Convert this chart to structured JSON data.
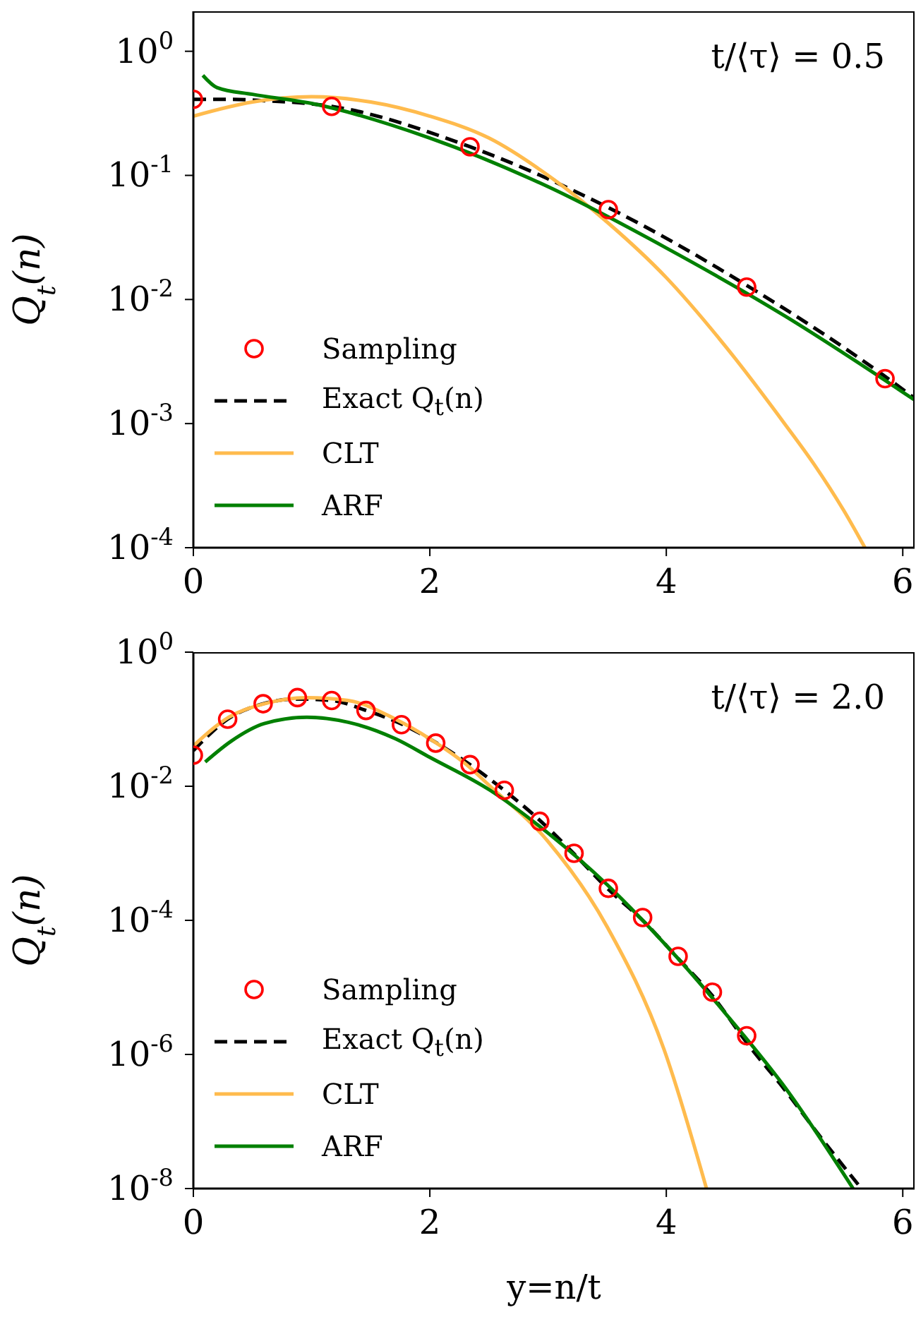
{
  "chart_data": [
    {
      "type": "line",
      "ylabel": "Q$_{t}$(n)",
      "annotations": [
        "t/⟨τ⟩ = 0.5"
      ],
      "xlim": [
        0,
        6.1
      ],
      "xticks": [
        0,
        2,
        4,
        6
      ],
      "ylim": [
        0.0001,
        2.1
      ],
      "yticks": [
        {
          "value": 1,
          "label": "10$^{0}$"
        },
        {
          "value": 0.1,
          "label": "10$^{-1}$"
        },
        {
          "value": 0.01,
          "label": "10$^{-2}$"
        },
        {
          "value": 0.001,
          "label": "10$^{-3}$"
        },
        {
          "value": 0.0001,
          "label": "10$^{-4}$"
        }
      ],
      "log": "y",
      "grid": false,
      "legend": "bottom left",
      "series": [
        {
          "name": "Sampling",
          "type": "scatter",
          "marker": "circle",
          "color": "#ff0000",
          "x": [
            0,
            1.17,
            2.34,
            3.51,
            4.68,
            5.85
          ],
          "values": [
            0.41,
            0.36,
            0.17,
            0.053,
            0.0126,
            0.0023
          ]
        },
        {
          "name": "Exact Q$_{t}$(n)",
          "line_style": "dashed",
          "color": "#000000",
          "x": [
            0,
            0.3,
            0.6,
            1.17,
            2.34,
            3.51,
            4.68,
            5.85,
            6.1
          ],
          "values": [
            0.41,
            0.41,
            0.4,
            0.36,
            0.17,
            0.055,
            0.013,
            0.0024,
            0.0016
          ]
        },
        {
          "name": "CLT",
          "line_style": "solid",
          "color": "#ffbb4d",
          "x": [
            0,
            0.5,
            1,
            1.5,
            2,
            2.5,
            3,
            3.5,
            4,
            4.5,
            5,
            5.25,
            5.5,
            5.68
          ],
          "values": [
            0.3,
            0.39,
            0.43,
            0.39,
            0.3,
            0.2,
            0.1,
            0.042,
            0.015,
            0.0042,
            0.001,
            0.00047,
            0.0002,
            0.0001
          ]
        },
        {
          "name": "ARF",
          "line_style": "solid",
          "color": "#008000",
          "x": [
            0.08,
            0.2,
            0.5,
            1,
            2,
            3,
            4,
            5,
            6.1
          ],
          "values": [
            0.64,
            0.51,
            0.45,
            0.38,
            0.2,
            0.081,
            0.026,
            0.0074,
            0.00155
          ]
        }
      ]
    },
    {
      "type": "line",
      "xlabel": "y=n/t",
      "ylabel": "Q$_{t}$(n)",
      "annotations": [
        "t/⟨τ⟩ = 2.0"
      ],
      "xlim": [
        0,
        6.1
      ],
      "xticks": [
        0,
        2,
        4,
        6
      ],
      "ylim": [
        1e-08,
        1
      ],
      "yticks": [
        {
          "value": 1,
          "label": "10$^{0}$"
        },
        {
          "value": 0.01,
          "label": "10$^{-2}$"
        },
        {
          "value": 0.0001,
          "label": "10$^{-4}$"
        },
        {
          "value": 1e-06,
          "label": "10$^{-6}$"
        },
        {
          "value": 1e-08,
          "label": "10$^{-8}$"
        }
      ],
      "log": "y",
      "grid": false,
      "legend": "bottom left",
      "series": [
        {
          "name": "Sampling",
          "type": "scatter",
          "marker": "circle",
          "color": "#ff0000",
          "x": [
            0,
            0.29,
            0.59,
            0.88,
            1.17,
            1.46,
            1.76,
            2.05,
            2.34,
            2.63,
            2.93,
            3.22,
            3.51,
            3.8,
            4.1,
            4.39,
            4.68
          ],
          "values": [
            0.029,
            0.1,
            0.17,
            0.21,
            0.19,
            0.135,
            0.083,
            0.044,
            0.021,
            0.0087,
            0.003,
            0.001,
            0.0003,
            0.00011,
            2.9e-05,
            8.5e-06,
            1.9e-06
          ]
        },
        {
          "name": "Exact Q$_{t}$(n)",
          "line_style": "dashed",
          "color": "#000000",
          "x": [
            0,
            0.29,
            0.59,
            0.88,
            1.17,
            1.46,
            1.76,
            2.05,
            2.34,
            2.63,
            2.93,
            3.22,
            3.51,
            3.8,
            4.1,
            4.39,
            4.68,
            5,
            5.3,
            5.65
          ],
          "values": [
            0.034,
            0.1,
            0.17,
            0.2,
            0.19,
            0.135,
            0.085,
            0.045,
            0.021,
            0.0087,
            0.0031,
            0.00098,
            0.00029,
            0.0001,
            2.7e-05,
            7.5e-06,
            1.5e-06,
            3e-07,
            6e-08,
            1e-08
          ]
        },
        {
          "name": "CLT",
          "line_style": "solid",
          "color": "#ffbb4d",
          "x": [
            0,
            0.3,
            0.6,
            0.96,
            1.31,
            1.71,
            2,
            2.31,
            2.51,
            3,
            3.5,
            3.98,
            4.34
          ],
          "values": [
            0.04,
            0.107,
            0.17,
            0.21,
            0.19,
            0.1,
            0.051,
            0.021,
            0.01,
            0.0015,
            8e-05,
            1.2e-06,
            1e-08
          ]
        },
        {
          "name": "ARF",
          "line_style": "solid",
          "color": "#008000",
          "x": [
            0.1,
            0.32,
            0.6,
            0.96,
            1.31,
            1.71,
            2,
            2.51,
            3,
            3.5,
            4,
            4.5,
            5,
            5.58
          ],
          "values": [
            0.023,
            0.047,
            0.086,
            0.107,
            0.09,
            0.051,
            0.027,
            0.0087,
            0.002,
            0.00034,
            4.2e-05,
            4.1e-06,
            3.3e-07,
            1e-08
          ]
        }
      ]
    }
  ]
}
